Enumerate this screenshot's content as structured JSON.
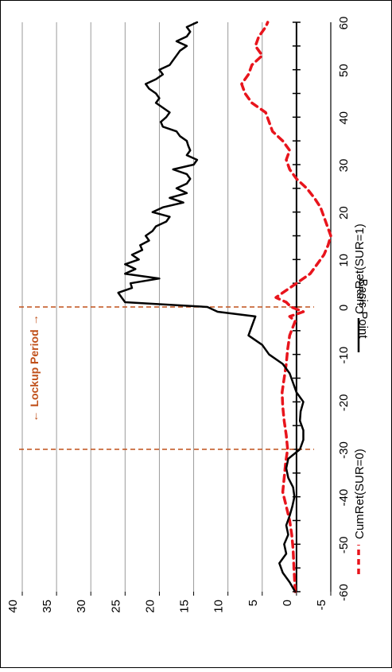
{
  "chart_data": {
    "type": "line",
    "orientation": "rotated-90-clockwise",
    "x_range": [
      -60,
      60
    ],
    "x_ticks": [
      "-60",
      "-50",
      "-40",
      "-30",
      "-20",
      "-10",
      "0",
      "10",
      "20",
      "30",
      "40",
      "50",
      "60"
    ],
    "y_range": [
      -5,
      40
    ],
    "y_ticks": [
      "-5",
      "0",
      "5",
      "10",
      "15",
      "20",
      "25",
      "30",
      "35",
      "40"
    ],
    "ylabel": "Basis Point",
    "xlabel": "",
    "grid": true,
    "legend_position": "bottom",
    "annotation": {
      "label": "Lockup Period",
      "arrow_left": "←",
      "arrow_right": "→",
      "x_start": -30,
      "x_end": 0,
      "color": "#c0501a"
    },
    "series": [
      {
        "name": "CumRet(SUR=0)",
        "color": "#e8141c",
        "dash": "dashed",
        "x": [
          -60,
          -57,
          -54,
          -51,
          -48,
          -45,
          -42,
          -39,
          -36,
          -33,
          -30,
          -27,
          -24,
          -21,
          -18,
          -15,
          -12,
          -9,
          -6,
          -3,
          -2,
          -1,
          0,
          1,
          2,
          3,
          5,
          7,
          9,
          11,
          13,
          15,
          17,
          19,
          21,
          23,
          25,
          27,
          29,
          31,
          33,
          35,
          37,
          39,
          41,
          43,
          45,
          47,
          49,
          51,
          53,
          55,
          57,
          59,
          60
        ],
        "values": [
          0.2,
          0.3,
          0.4,
          0.5,
          0.7,
          1.0,
          1.5,
          2.0,
          1.8,
          1.6,
          1.3,
          1.5,
          1.8,
          2.0,
          2.1,
          1.8,
          1.5,
          1.3,
          1.0,
          0.2,
          1.0,
          -1.0,
          0.8,
          1.5,
          3.0,
          2.0,
          0.0,
          -2.0,
          -3.0,
          -4.0,
          -4.6,
          -5.0,
          -4.5,
          -4.0,
          -3.5,
          -2.6,
          -1.5,
          0.0,
          1.0,
          1.5,
          1.0,
          2.0,
          3.5,
          4.0,
          4.5,
          6.5,
          7.5,
          8.0,
          7.0,
          6.5,
          5.0,
          6.0,
          5.5,
          4.5,
          4.2
        ]
      },
      {
        "name": "CumRet(SUR=1)",
        "color": "#000000",
        "dash": "solid",
        "x": [
          -60,
          -58,
          -56,
          -54,
          -52,
          -50,
          -48,
          -46,
          -44,
          -42,
          -40,
          -38,
          -36,
          -34,
          -32,
          -30,
          -28,
          -26,
          -24,
          -22,
          -20,
          -18,
          -16,
          -14,
          -12,
          -10,
          -8,
          -6,
          -4,
          -2,
          -1,
          0,
          1,
          2,
          3,
          4,
          5,
          6,
          7,
          8,
          9,
          10,
          11,
          12,
          13,
          14,
          15,
          16,
          17,
          18,
          19,
          20,
          21,
          22,
          23,
          24,
          25,
          26,
          27,
          28,
          29,
          30,
          31,
          32,
          33,
          34,
          35,
          36,
          37,
          38,
          39,
          40,
          41,
          42,
          43,
          44,
          45,
          46,
          47,
          48,
          49,
          50,
          51,
          52,
          53,
          54,
          55,
          56,
          57,
          58,
          59,
          60
        ],
        "values": [
          0.2,
          1.0,
          2.0,
          2.5,
          1.5,
          1.8,
          1.2,
          1.5,
          1.0,
          0.6,
          0.3,
          0.5,
          1.2,
          1.5,
          1.2,
          -0.5,
          -1.0,
          -1.0,
          -0.5,
          -0.6,
          -1.0,
          0.0,
          0.5,
          1.0,
          2.0,
          4.0,
          5.0,
          7.0,
          6.5,
          6.0,
          11.5,
          13.0,
          25.0,
          25.5,
          26.0,
          24.0,
          24.2,
          20.0,
          25.0,
          23.5,
          25.0,
          23.0,
          24.0,
          22.5,
          22.8,
          21.5,
          22.0,
          21.0,
          20.5,
          19.0,
          18.5,
          21.0,
          19.5,
          16.5,
          18.5,
          16.0,
          17.5,
          16.0,
          15.5,
          16.0,
          18.0,
          15.0,
          14.5,
          16.0,
          15.5,
          15.8,
          16.0,
          17.0,
          17.5,
          19.5,
          19.8,
          19.0,
          18.5,
          19.5,
          20.5,
          20.0,
          20.5,
          21.5,
          22.0,
          20.5,
          19.5,
          20.0,
          18.5,
          18.0,
          17.5,
          17.0,
          16.0,
          17.5,
          16.0,
          15.5,
          16.0,
          14.5
        ]
      }
    ]
  }
}
